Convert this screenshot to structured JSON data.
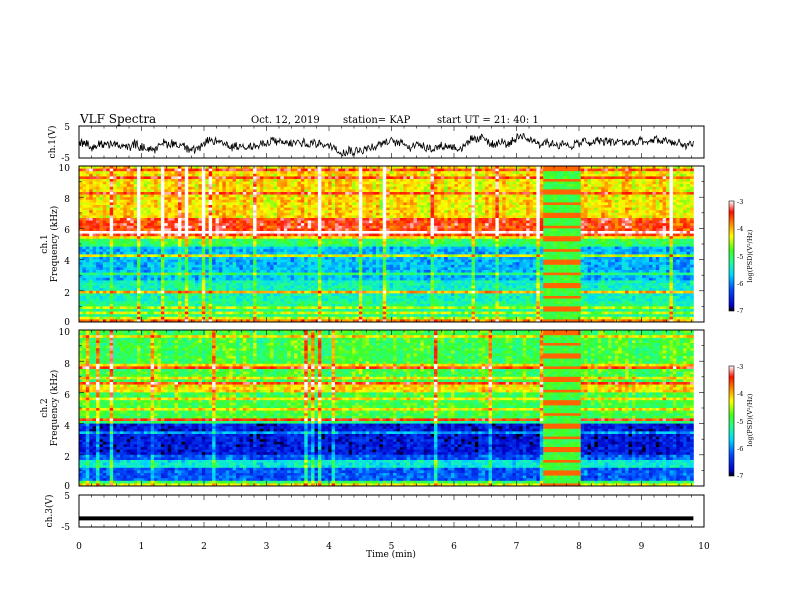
{
  "header": {
    "title": "VLF Spectra",
    "date": "Oct. 12, 2019",
    "station": "station= KAP",
    "start": "start  UT  =   21: 40: 1"
  },
  "chart_data": [
    {
      "id": "ch1-waveform",
      "type": "line",
      "ylabel": "ch.1(V)",
      "ylim": [
        -5,
        5
      ],
      "y_ticks": [
        "5",
        "-5"
      ],
      "xlim": [
        0,
        10
      ],
      "series_description": "noisy voltage trace around -0.5 V, amplitude about ±2 V, data until ~9.8 min"
    },
    {
      "id": "ch1-spectrogram",
      "type": "heatmap",
      "ylabel": "ch.1",
      "ylabel2": "Frequency (kHz)",
      "ylim": [
        0,
        10
      ],
      "y_ticks": [
        "0",
        "2",
        "4",
        "6",
        "8",
        "10"
      ],
      "xlim": [
        0,
        10
      ],
      "colorbar": {
        "label": "log(PSD)(V²/Hz)",
        "range": [
          -7,
          -3
        ],
        "ticks": [
          "-3",
          "-4",
          "-5",
          "-6",
          "-7"
        ]
      },
      "bands": [
        {
          "f_range": [
            5.4,
            10
          ],
          "level": -4.2
        },
        {
          "f_range": [
            5.0,
            5.4
          ],
          "level": -5.0
        },
        {
          "f_range": [
            2.6,
            5.0
          ],
          "level": -5.8
        },
        {
          "f_range": [
            1.3,
            2.6
          ],
          "level": -5.4
        },
        {
          "f_range": [
            0.4,
            1.3
          ],
          "level": -5.2
        },
        {
          "f_range": [
            0,
            0.4
          ],
          "level": -4.5
        }
      ],
      "interference_interval_min": [
        7.4,
        8.05
      ]
    },
    {
      "id": "ch2-spectrogram",
      "type": "heatmap",
      "ylabel": "ch.2",
      "ylabel2": "Frequency (kHz)",
      "ylim": [
        0,
        10
      ],
      "y_ticks": [
        "0",
        "2",
        "4",
        "6",
        "8",
        "10"
      ],
      "xlim": [
        0,
        10
      ],
      "colorbar": {
        "label": "log(PSD)(V²/Hz)",
        "range": [
          -7,
          -3
        ],
        "ticks": [
          "-3",
          "-4",
          "-5",
          "-6",
          "-7"
        ]
      },
      "bands": [
        {
          "f_range": [
            4.2,
            10
          ],
          "level": -4.9
        },
        {
          "f_range": [
            2.0,
            4.2
          ],
          "level": -6.6
        },
        {
          "f_range": [
            0.4,
            2.0
          ],
          "level": -6.2
        },
        {
          "f_range": [
            0,
            0.4
          ],
          "level": -5.0
        }
      ],
      "interference_interval_min": [
        7.4,
        8.05
      ]
    },
    {
      "id": "ch3-waveform",
      "type": "line",
      "ylabel": "ch.3(V)",
      "ylim": [
        -5,
        5
      ],
      "y_ticks": [
        "5",
        "-5"
      ],
      "xlim": [
        0,
        10
      ],
      "x_ticks": [
        "0",
        "1",
        "2",
        "3",
        "4",
        "5",
        "6",
        "7",
        "8",
        "9",
        "10"
      ],
      "xlabel": "Time  (min)",
      "series_description": "flat line at about -2.3 V"
    }
  ]
}
